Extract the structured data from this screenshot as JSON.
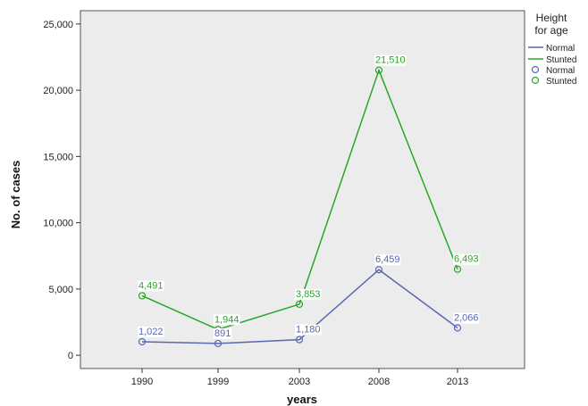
{
  "chart_data": {
    "type": "line",
    "categories": [
      "1990",
      "1999",
      "2003",
      "2008",
      "2013"
    ],
    "series": [
      {
        "name": "Normal",
        "values": [
          1022,
          891,
          1180,
          6459,
          2066
        ],
        "labels": [
          "1,022",
          "891",
          "1,180",
          "6,459",
          "2,066"
        ],
        "color": "#5b67b3"
      },
      {
        "name": "Stunted",
        "values": [
          4491,
          1944,
          3853,
          21510,
          6493
        ],
        "labels": [
          "4,491",
          "1,944",
          "3,853",
          "21,510",
          "6,493"
        ],
        "color": "#2aa62a"
      }
    ],
    "xlabel": "years",
    "ylabel": "No. of cases",
    "ylim": [
      -1000,
      26000
    ],
    "yticks": [
      0,
      5000,
      10000,
      15000,
      20000,
      25000
    ],
    "ytick_labels": [
      "0",
      "5,000",
      "10,000",
      "15,000",
      "20,000",
      "25,000"
    ],
    "plot_background": "#ececec",
    "grid": false,
    "legend": {
      "placement": "right",
      "title_lines": [
        "Height",
        "for age"
      ],
      "line_entries": [
        "Normal",
        "Stunted"
      ],
      "marker_entries": [
        "Normal",
        "Stunted"
      ]
    }
  }
}
